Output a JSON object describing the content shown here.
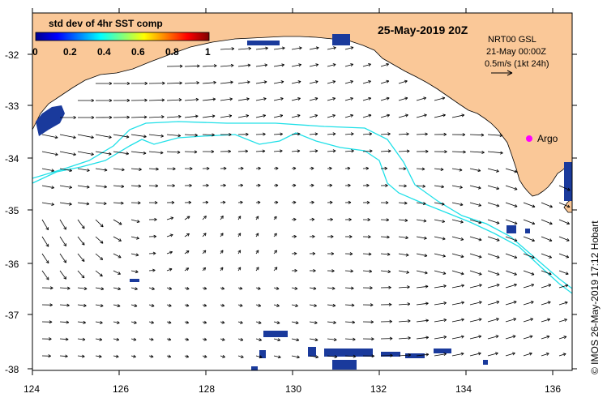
{
  "map": {
    "title": "25-May-2019 20Z",
    "credit": "© IMOS 26-May-2019 17:12 Hobart",
    "x_ticks": [
      "124",
      "126",
      "128",
      "130",
      "132",
      "134",
      "136"
    ],
    "y_ticks": [
      "-32",
      "-33",
      "-34",
      "-35",
      "-36",
      "-37",
      "-38"
    ],
    "lon_range": [
      124,
      136.7
    ],
    "lat_range": [
      -38.1,
      -31.3
    ]
  },
  "colorbar": {
    "title": "std dev of 4hr SST comp",
    "ticks": [
      "0",
      "0.2",
      "0.4",
      "0.6",
      "0.8",
      "1"
    ]
  },
  "info": {
    "line1": "NRT00 GSL",
    "line2": "21-May 00:00Z",
    "line3": "0.5m/s (1kt 24h)"
  },
  "argo": {
    "label": "Argo",
    "lon": 135.5,
    "lat": -33.6
  },
  "colors": {
    "land": "#fac898",
    "ocean": "#ffffff",
    "contour": "#20e0e8",
    "data_patch": "#1a3a9c",
    "argo": "#ff00ff",
    "arrow": "#000000"
  }
}
